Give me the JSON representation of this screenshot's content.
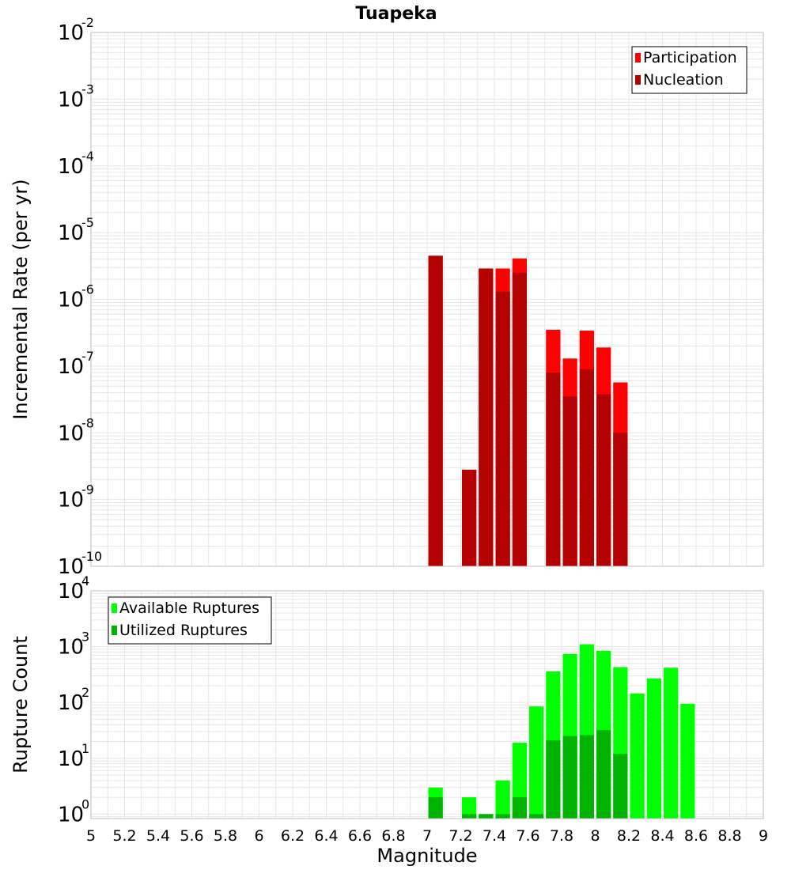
{
  "title": "Tuapeka",
  "colors": {
    "participation": "#ff0000",
    "nucleation": "#b30000",
    "available": "#00ff00",
    "utilized": "#00b300",
    "grid": "#e6e6e6",
    "frame": "#bfbfbf"
  },
  "chart_data": [
    {
      "type": "bar",
      "name": "rate",
      "xlabel": "Magnitude",
      "ylabel": "Incremental Rate (per yr)",
      "log_y": true,
      "xlim": [
        5,
        9
      ],
      "ylim_exponents": [
        -10,
        -2
      ],
      "ytick_exponents": [
        "-10",
        "-9",
        "-8",
        "-7",
        "-6",
        "-5",
        "-4",
        "-3",
        "-2"
      ],
      "grid": true,
      "legend_position": "top-right",
      "bar_width": 0.1,
      "x": [
        7.05,
        7.25,
        7.35,
        7.45,
        7.55,
        7.75,
        7.85,
        7.95,
        8.05,
        8.15
      ],
      "series": [
        {
          "name": "Participation",
          "color_key": "participation",
          "values": [
            4.5e-06,
            2.8e-09,
            2.9e-06,
            2.9e-06,
            4.1e-06,
            3.5e-07,
            1.3e-07,
            3.4e-07,
            1.9e-07,
            5.7e-08
          ]
        },
        {
          "name": "Nucleation",
          "color_key": "nucleation",
          "values": [
            4.5e-06,
            2.8e-09,
            2.9e-06,
            1.3e-06,
            2.5e-06,
            8e-08,
            3.5e-08,
            9e-08,
            3.8e-08,
            1e-08
          ]
        }
      ]
    },
    {
      "type": "bar",
      "name": "count",
      "xlabel": "Magnitude",
      "ylabel": "Rupture Count",
      "log_y": true,
      "xlim": [
        5,
        9
      ],
      "ylim_exponents": [
        -0.08,
        4
      ],
      "ytick_exponents": [
        "0",
        "1",
        "2",
        "3",
        "4"
      ],
      "grid": true,
      "legend_position": "top-left",
      "bar_width": 0.1,
      "xticks": [
        "5",
        "5.2",
        "5.4",
        "5.6",
        "5.8",
        "6",
        "6.2",
        "6.4",
        "6.6",
        "6.8",
        "7",
        "7.2",
        "7.4",
        "7.6",
        "7.8",
        "8",
        "8.2",
        "8.4",
        "8.6",
        "8.8",
        "9"
      ],
      "x": [
        7.05,
        7.25,
        7.35,
        7.45,
        7.55,
        7.65,
        7.75,
        7.85,
        7.95,
        8.05,
        8.15,
        8.25,
        8.35,
        8.45,
        8.55
      ],
      "series": [
        {
          "name": "Available Ruptures",
          "color_key": "available",
          "values": [
            3,
            2,
            1,
            4,
            19,
            85,
            360,
            740,
            1100,
            840,
            430,
            145,
            270,
            420,
            95
          ]
        },
        {
          "name": "Utilized Ruptures",
          "color_key": "utilized",
          "values": [
            2,
            1,
            1,
            1,
            2,
            1,
            21,
            25,
            26,
            32,
            12,
            0,
            0,
            0,
            0
          ]
        }
      ]
    }
  ]
}
